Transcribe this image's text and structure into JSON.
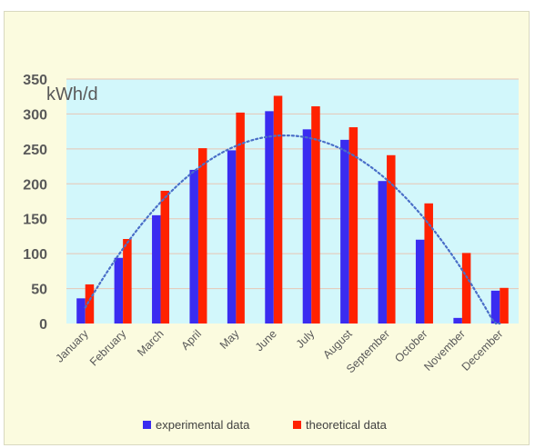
{
  "chart_data": {
    "type": "bar",
    "categories": [
      "January",
      "February",
      "March",
      "April",
      "May",
      "June",
      "July",
      "August",
      "September",
      "October",
      "November",
      "December"
    ],
    "series": [
      {
        "name": "experimental data",
        "color": "#3a2cf0",
        "values": [
          36,
          94,
          155,
          220,
          248,
          304,
          278,
          263,
          204,
          120,
          8,
          47
        ]
      },
      {
        "name": "theoretical data",
        "color": "#ff2200",
        "values": [
          56,
          121,
          190,
          251,
          302,
          326,
          311,
          281,
          241,
          172,
          101,
          51
        ]
      }
    ],
    "trendline": {
      "type": "polynomial",
      "style": "dotted",
      "color": "#4a6fc8"
    },
    "unit_label": "kWh/d",
    "ylim": [
      0,
      350
    ],
    "yticks": [
      0,
      50,
      100,
      150,
      200,
      250,
      300,
      350
    ],
    "grid": true,
    "plot_background": "#d2f7fb",
    "frame_background": "#fbfbdf",
    "legend_position": "bottom"
  }
}
